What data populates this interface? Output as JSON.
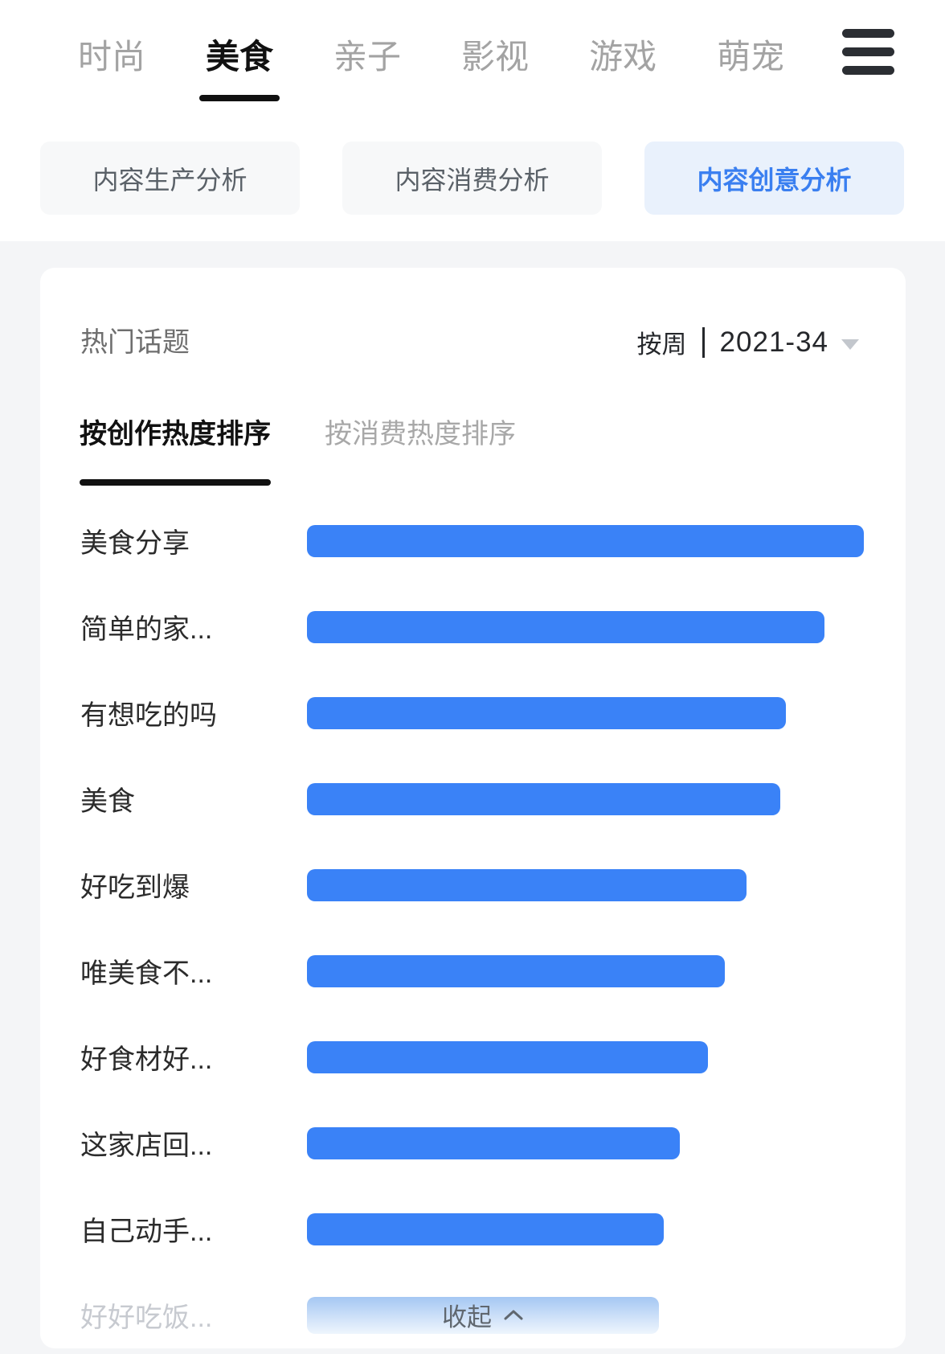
{
  "nav": {
    "items": [
      {
        "label": "时尚",
        "active": false
      },
      {
        "label": "美食",
        "active": true
      },
      {
        "label": "亲子",
        "active": false
      },
      {
        "label": "影视",
        "active": false
      },
      {
        "label": "游戏",
        "active": false
      },
      {
        "label": "萌宠",
        "active": false
      }
    ]
  },
  "pills": [
    {
      "label": "内容生产分析",
      "active": false
    },
    {
      "label": "内容消费分析",
      "active": false
    },
    {
      "label": "内容创意分析",
      "active": true
    }
  ],
  "card": {
    "title": "热门话题",
    "period": {
      "mode": "按周",
      "value": "2021-34"
    },
    "sort_tabs": [
      {
        "label": "按创作热度排序",
        "active": true
      },
      {
        "label": "按消费热度排序",
        "active": false
      }
    ]
  },
  "chart_data": {
    "type": "bar",
    "orientation": "horizontal",
    "title": "热门话题 (按创作热度排序)",
    "categories": [
      "美食分享",
      "简单的家...",
      "有想吃的吗",
      "美食",
      "好吃到爆",
      "唯美食不...",
      "好食材好...",
      "这家店回...",
      "自己动手..."
    ],
    "values": [
      100,
      93,
      86,
      85,
      79,
      75,
      72,
      67,
      64
    ],
    "value_note": "relative bar length, percent of longest bar; no numeric axis shown",
    "collapsed_category": "好好吃饭...",
    "bar_color": "#3a82f7",
    "xlabel": "",
    "ylabel": "",
    "grid": false,
    "legend": false
  },
  "collapse": {
    "label": "收起"
  },
  "colors": {
    "accent_blue": "#3a82f7",
    "active_pill_bg": "#e9f1fc",
    "active_pill_text": "#3a7ff0",
    "page_bg": "#f4f5f7",
    "inactive_text": "#a3a3a3",
    "faded_label": "#c7cad0"
  }
}
